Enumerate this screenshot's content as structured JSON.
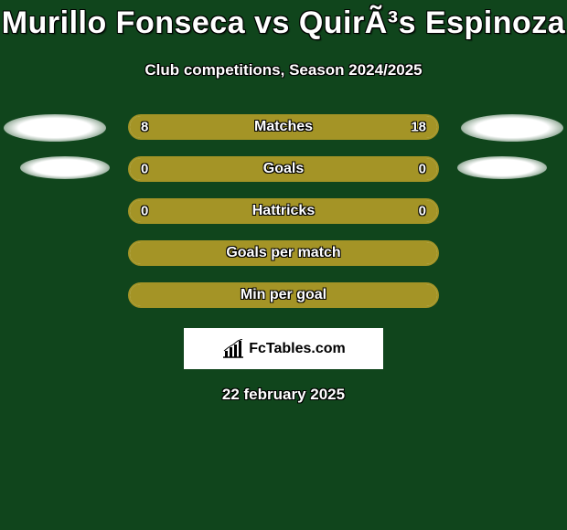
{
  "background_color": "#10451c",
  "accent_color": "#a49426",
  "bar_bg_color": "#e6f0e9",
  "title": "Murillo Fonseca vs QuirÃ³s Espinoza",
  "subtitle": "Club competitions, Season 2024/2025",
  "rows": [
    {
      "label": "Matches",
      "left_value": "8",
      "right_value": "18",
      "left_pct": 30.8,
      "right_pct": 69.2,
      "show_values": true,
      "left_oval": "big",
      "right_oval": "big"
    },
    {
      "label": "Goals",
      "left_value": "0",
      "right_value": "0",
      "left_pct": 50,
      "right_pct": 50,
      "show_values": true,
      "left_oval": "small",
      "right_oval": "small"
    },
    {
      "label": "Hattricks",
      "left_value": "0",
      "right_value": "0",
      "left_pct": 50,
      "right_pct": 50,
      "show_values": true,
      "left_oval": null,
      "right_oval": null
    },
    {
      "label": "Goals per match",
      "left_value": "",
      "right_value": "",
      "left_pct": 50,
      "right_pct": 50,
      "show_values": false,
      "left_oval": null,
      "right_oval": null
    },
    {
      "label": "Min per goal",
      "left_value": "",
      "right_value": "",
      "left_pct": 50,
      "right_pct": 50,
      "show_values": false,
      "left_oval": null,
      "right_oval": null
    }
  ],
  "footer_brand": "FcTables.com",
  "date": "22 february 2025"
}
